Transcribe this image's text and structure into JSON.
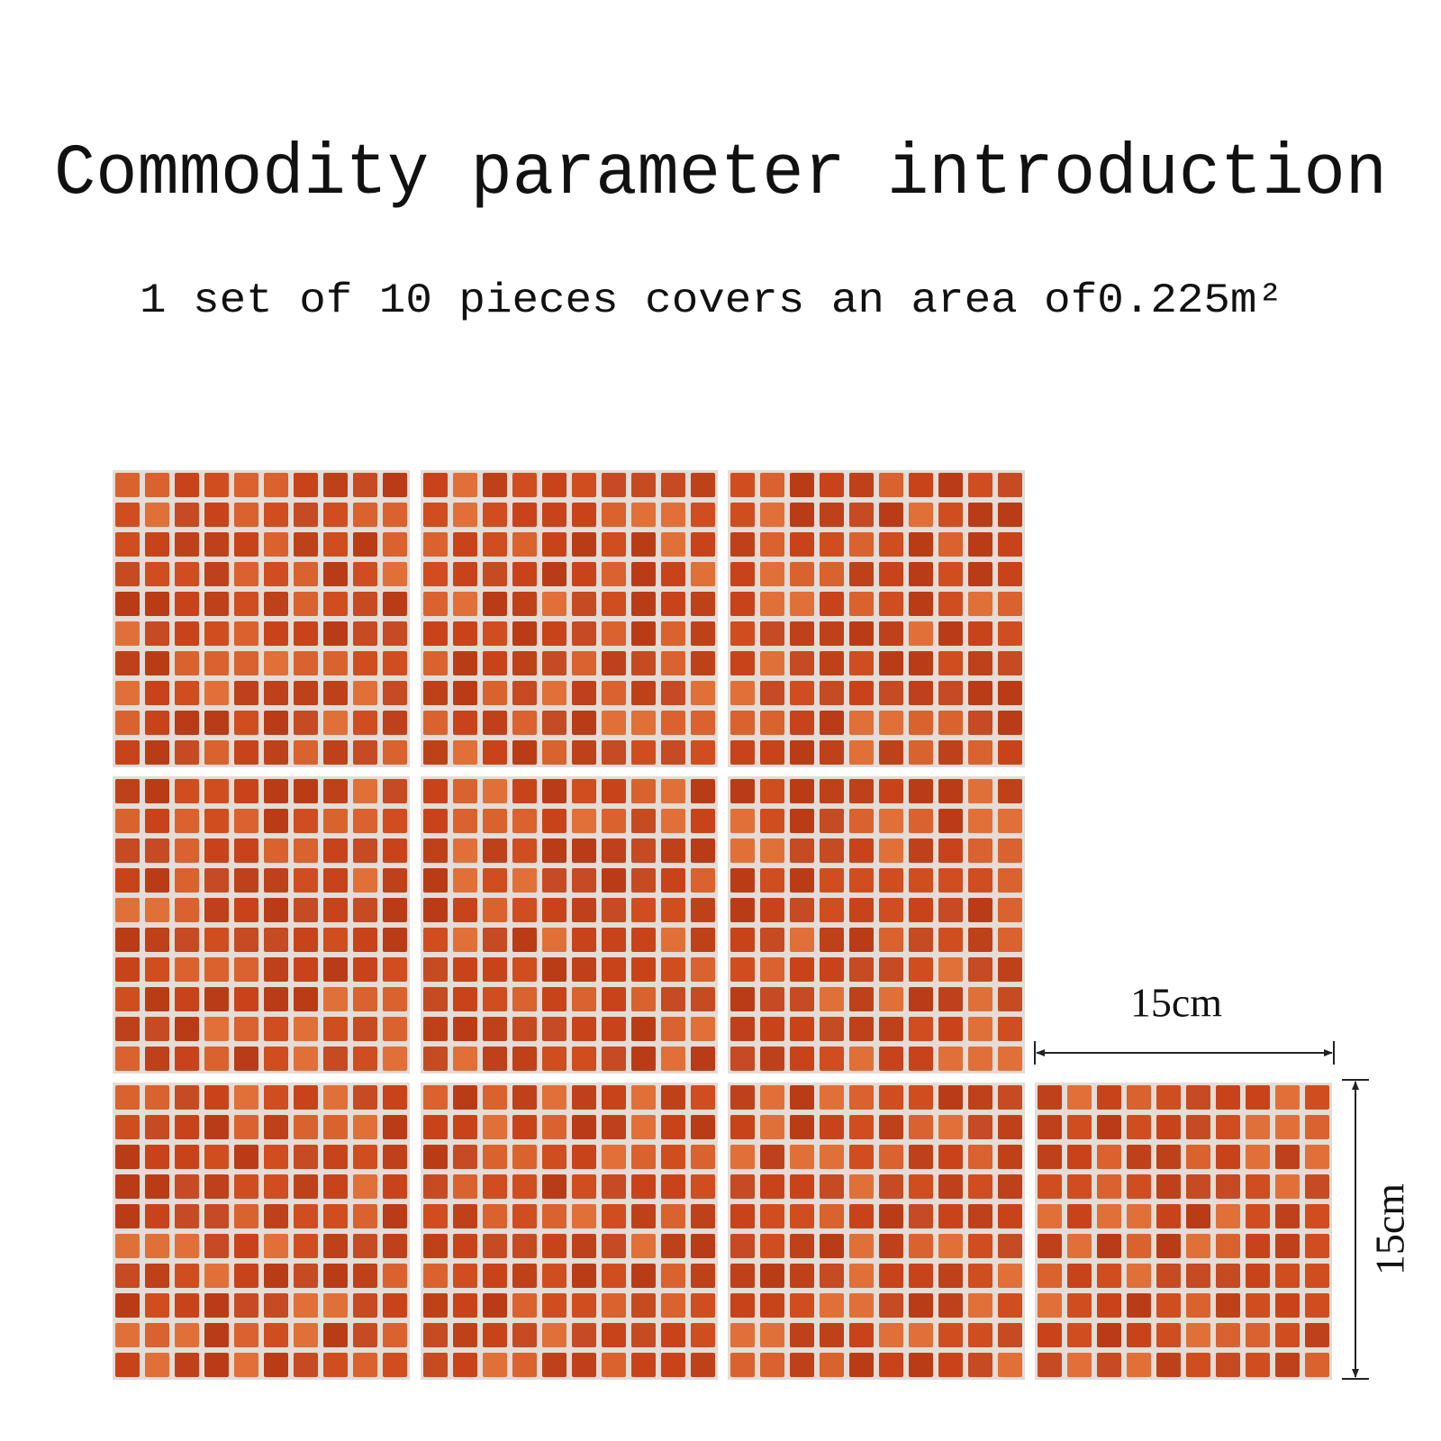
{
  "header": {
    "title": "Commodity parameter introduction",
    "subtitle": "1 set of 10 pieces covers an area of0.225m²"
  },
  "dimensions": {
    "width": "15cm",
    "height": "15cm"
  }
}
